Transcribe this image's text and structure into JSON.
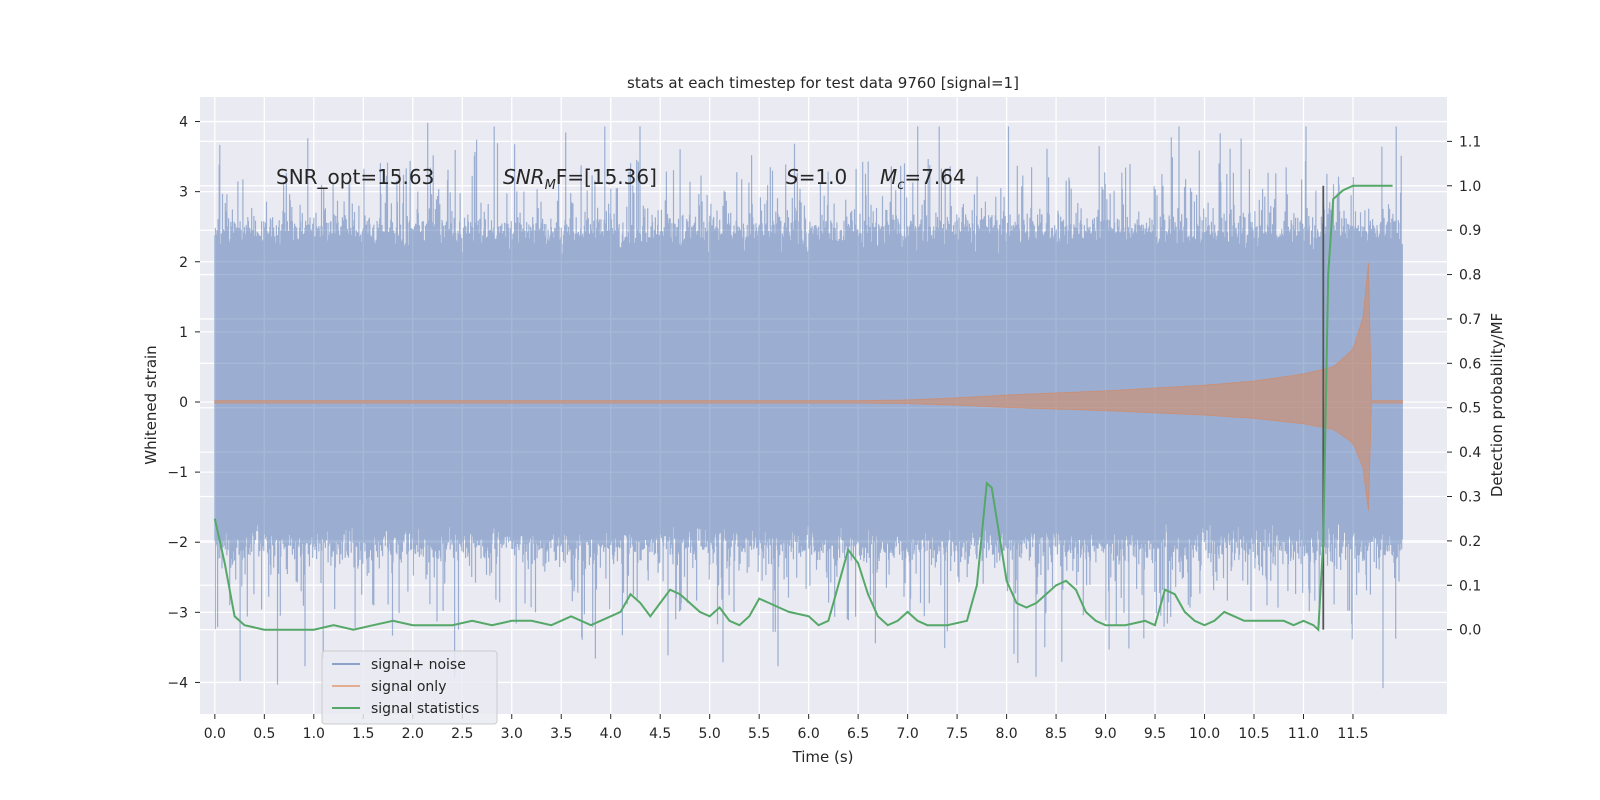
{
  "chart_data": {
    "type": "line",
    "title": "stats at each timestep for test data 9760 [signal=1]",
    "xlabel": "Time (s)",
    "ylabel": "Whitened strain",
    "ylabel_right": "Detection probability/MF",
    "xlim": [
      -0.15,
      12.45
    ],
    "ylim": [
      -4.45,
      4.35
    ],
    "ylim_right": [
      -0.19,
      1.2
    ],
    "x_ticks": [
      0.0,
      0.5,
      1.0,
      1.5,
      2.0,
      2.5,
      3.0,
      3.5,
      4.0,
      4.5,
      5.0,
      5.5,
      6.0,
      6.5,
      7.0,
      7.5,
      8.0,
      8.5,
      9.0,
      9.5,
      10.0,
      10.5,
      11.0,
      11.5
    ],
    "x_tick_labels": [
      "0.0",
      "0.5",
      "1.0",
      "1.5",
      "2.0",
      "2.5",
      "3.0",
      "3.5",
      "4.0",
      "4.5",
      "5.0",
      "5.5",
      "6.0",
      "6.5",
      "7.0",
      "7.5",
      "8.0",
      "8.5",
      "9.0",
      "9.5",
      "10.0",
      "10.5",
      "11.0",
      "11.5"
    ],
    "y_ticks": [
      -4,
      -3,
      -2,
      -1,
      0,
      1,
      2,
      3,
      4
    ],
    "y_tick_labels": [
      "−4",
      "−3",
      "−2",
      "−1",
      "0",
      "1",
      "2",
      "3",
      "4"
    ],
    "y_ticks_right": [
      0.0,
      0.1,
      0.2,
      0.3,
      0.4,
      0.5,
      0.6,
      0.7,
      0.8,
      0.9,
      1.0,
      1.1
    ],
    "y_tick_labels_right": [
      "0.0",
      "0.1",
      "0.2",
      "0.3",
      "0.4",
      "0.5",
      "0.6",
      "0.7",
      "0.8",
      "0.9",
      "1.0",
      "1.1"
    ],
    "grid": true,
    "legend_position": "lower-left",
    "annotations": {
      "snr_opt": "SNR_opt=15.63",
      "snr_mf_base": "SNR",
      "snr_mf_sub": "M",
      "snr_mf_rest": "F=[15.36]",
      "s_var": "S",
      "s_rest": "=1.0",
      "mc_var": "M",
      "mc_sub": "c",
      "mc_rest": "=7.64"
    },
    "noise_envelope": {
      "x": [
        0.0,
        12.0
      ],
      "typical_range": [
        -2.0,
        2.4
      ],
      "peak_max": 3.98,
      "peak_min": -4.08
    },
    "signal_envelope": {
      "x": [
        0.0,
        6.5,
        7.0,
        7.5,
        8.0,
        8.5,
        9.0,
        9.5,
        10.0,
        10.5,
        11.0,
        11.3,
        11.5,
        11.6,
        11.65,
        11.68
      ],
      "amplitude": [
        0.02,
        0.02,
        0.03,
        0.06,
        0.1,
        0.13,
        0.16,
        0.2,
        0.24,
        0.3,
        0.4,
        0.5,
        0.75,
        1.2,
        1.9,
        2.25
      ],
      "after_end": 0.02
    },
    "marker_line": {
      "x": 11.2,
      "y_from": 0.0,
      "y_to": 1.0
    },
    "series": [
      {
        "name": "signal+ noise",
        "color": "#4c72b0"
      },
      {
        "name": "signal only",
        "color": "#dd8452"
      },
      {
        "name": "signal statistics",
        "color": "#55a868",
        "x": [
          0.0,
          0.1,
          0.2,
          0.3,
          0.5,
          0.7,
          1.0,
          1.2,
          1.4,
          1.6,
          1.8,
          2.0,
          2.2,
          2.4,
          2.6,
          2.8,
          3.0,
          3.2,
          3.4,
          3.6,
          3.8,
          4.0,
          4.1,
          4.2,
          4.3,
          4.4,
          4.5,
          4.6,
          4.7,
          4.8,
          4.9,
          5.0,
          5.1,
          5.2,
          5.3,
          5.4,
          5.5,
          5.6,
          5.7,
          5.8,
          6.0,
          6.1,
          6.2,
          6.3,
          6.4,
          6.5,
          6.6,
          6.7,
          6.8,
          6.9,
          7.0,
          7.1,
          7.2,
          7.4,
          7.6,
          7.7,
          7.8,
          7.85,
          7.9,
          8.0,
          8.1,
          8.2,
          8.3,
          8.5,
          8.6,
          8.7,
          8.8,
          8.9,
          9.0,
          9.2,
          9.4,
          9.5,
          9.6,
          9.7,
          9.8,
          9.9,
          10.0,
          10.1,
          10.2,
          10.3,
          10.4,
          10.6,
          10.8,
          10.9,
          11.0,
          11.1,
          11.15,
          11.2,
          11.25,
          11.3,
          11.35,
          11.4,
          11.5,
          11.6,
          11.7,
          11.8,
          11.9
        ],
        "values": [
          0.25,
          0.15,
          0.03,
          0.01,
          0.0,
          0.0,
          0.0,
          0.01,
          0.0,
          0.01,
          0.02,
          0.01,
          0.01,
          0.01,
          0.02,
          0.01,
          0.02,
          0.02,
          0.01,
          0.03,
          0.01,
          0.03,
          0.04,
          0.08,
          0.06,
          0.03,
          0.06,
          0.09,
          0.08,
          0.06,
          0.04,
          0.03,
          0.05,
          0.02,
          0.01,
          0.03,
          0.07,
          0.06,
          0.05,
          0.04,
          0.03,
          0.01,
          0.02,
          0.1,
          0.18,
          0.15,
          0.08,
          0.03,
          0.01,
          0.02,
          0.04,
          0.02,
          0.01,
          0.01,
          0.02,
          0.1,
          0.33,
          0.32,
          0.25,
          0.11,
          0.06,
          0.05,
          0.06,
          0.1,
          0.11,
          0.09,
          0.04,
          0.02,
          0.01,
          0.01,
          0.02,
          0.01,
          0.09,
          0.08,
          0.04,
          0.02,
          0.01,
          0.02,
          0.04,
          0.03,
          0.02,
          0.02,
          0.02,
          0.01,
          0.02,
          0.01,
          0.0,
          0.2,
          0.8,
          0.97,
          0.98,
          0.99,
          1.0,
          1.0,
          1.0,
          1.0,
          1.0
        ]
      }
    ]
  }
}
